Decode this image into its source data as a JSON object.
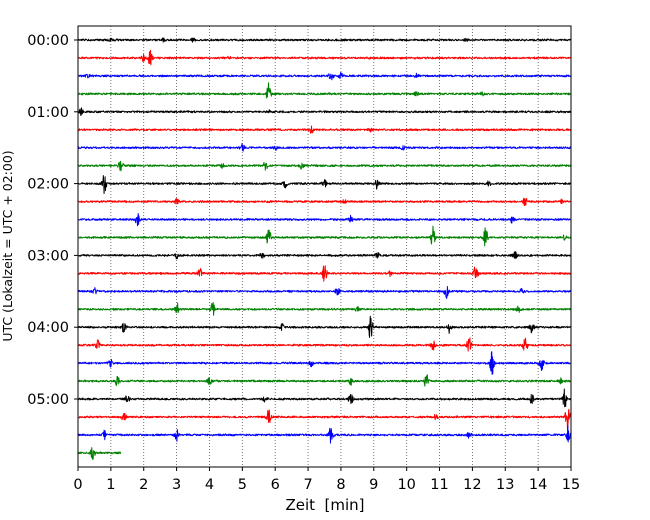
{
  "chart_data": {
    "type": "line",
    "title": "",
    "xlabel": "Zeit  [min]",
    "ylabel": "UTC (Lokalzeit = UTC + 02:00)",
    "xlim": [
      0,
      15
    ],
    "x_ticks": [
      "0",
      "1",
      "2",
      "3",
      "4",
      "5",
      "6",
      "7",
      "8",
      "9",
      "10",
      "11",
      "12",
      "13",
      "14",
      "15"
    ],
    "y_tick_labels": [
      "00:00",
      "01:00",
      "02:00",
      "03:00",
      "04:00",
      "05:00"
    ],
    "grid": "vertical dotted at each minute",
    "series_colors": [
      "#000000",
      "#ff0000",
      "#0000ff",
      "#008000"
    ],
    "traces": [
      {
        "start_utc": "00:00",
        "color": "#000000",
        "events": [
          {
            "t": 1.0,
            "amp": 0.15
          },
          {
            "t": 2.6,
            "amp": 0.12
          },
          {
            "t": 3.5,
            "amp": 0.15
          },
          {
            "t": 11.8,
            "amp": 0.12
          }
        ]
      },
      {
        "start_utc": "00:15",
        "color": "#ff0000",
        "events": [
          {
            "t": 2.2,
            "amp": 0.95
          },
          {
            "t": 2.0,
            "amp": 0.3
          },
          {
            "t": 4.6,
            "amp": 0.15
          }
        ]
      },
      {
        "start_utc": "00:30",
        "color": "#0000ff",
        "events": [
          {
            "t": 0.3,
            "amp": 0.15
          },
          {
            "t": 7.7,
            "amp": 0.4
          },
          {
            "t": 8.0,
            "amp": 0.4
          },
          {
            "t": 10.3,
            "amp": 0.15
          }
        ]
      },
      {
        "start_utc": "00:45",
        "color": "#008000",
        "events": [
          {
            "t": 5.8,
            "amp": 0.95
          },
          {
            "t": 10.3,
            "amp": 0.2
          },
          {
            "t": 12.3,
            "amp": 0.15
          }
        ]
      },
      {
        "start_utc": "01:00",
        "color": "#000000",
        "events": [
          {
            "t": 0.1,
            "amp": 0.3
          },
          {
            "t": 5.8,
            "amp": 0.12
          }
        ]
      },
      {
        "start_utc": "01:15",
        "color": "#ff0000",
        "events": [
          {
            "t": 7.1,
            "amp": 0.3
          },
          {
            "t": 8.9,
            "amp": 0.12
          }
        ]
      },
      {
        "start_utc": "01:30",
        "color": "#0000ff",
        "events": [
          {
            "t": 5.0,
            "amp": 0.3
          },
          {
            "t": 6.0,
            "amp": 0.2
          },
          {
            "t": 9.9,
            "amp": 0.2
          }
        ]
      },
      {
        "start_utc": "01:45",
        "color": "#008000",
        "events": [
          {
            "t": 1.3,
            "amp": 0.55
          },
          {
            "t": 5.7,
            "amp": 0.4
          },
          {
            "t": 6.8,
            "amp": 0.25
          },
          {
            "t": 4.4,
            "amp": 0.2
          }
        ]
      },
      {
        "start_utc": "02:00",
        "color": "#000000",
        "events": [
          {
            "t": 0.8,
            "amp": 0.95
          },
          {
            "t": 7.5,
            "amp": 0.4
          },
          {
            "t": 9.1,
            "amp": 0.5
          },
          {
            "t": 12.5,
            "amp": 0.25
          },
          {
            "t": 6.3,
            "amp": 0.3
          }
        ]
      },
      {
        "start_utc": "02:15",
        "color": "#ff0000",
        "events": [
          {
            "t": 3.0,
            "amp": 0.3
          },
          {
            "t": 8.1,
            "amp": 0.2
          },
          {
            "t": 13.6,
            "amp": 0.35
          },
          {
            "t": 14.7,
            "amp": 0.2
          }
        ]
      },
      {
        "start_utc": "02:30",
        "color": "#0000ff",
        "events": [
          {
            "t": 1.8,
            "amp": 0.75
          },
          {
            "t": 8.3,
            "amp": 0.3
          },
          {
            "t": 13.2,
            "amp": 0.25
          }
        ]
      },
      {
        "start_utc": "02:45",
        "color": "#008000",
        "events": [
          {
            "t": 5.8,
            "amp": 0.95
          },
          {
            "t": 10.8,
            "amp": 1.0
          },
          {
            "t": 12.4,
            "amp": 0.85
          },
          {
            "t": 14.8,
            "amp": 0.2
          }
        ]
      },
      {
        "start_utc": "03:00",
        "color": "#000000",
        "events": [
          {
            "t": 3.0,
            "amp": 0.3
          },
          {
            "t": 5.6,
            "amp": 0.25
          },
          {
            "t": 9.1,
            "amp": 0.3
          },
          {
            "t": 13.3,
            "amp": 0.3
          }
        ]
      },
      {
        "start_utc": "03:15",
        "color": "#ff0000",
        "events": [
          {
            "t": 3.7,
            "amp": 0.45
          },
          {
            "t": 7.5,
            "amp": 0.85
          },
          {
            "t": 12.1,
            "amp": 0.95
          },
          {
            "t": 9.5,
            "amp": 0.2
          }
        ]
      },
      {
        "start_utc": "03:30",
        "color": "#0000ff",
        "events": [
          {
            "t": 0.5,
            "amp": 0.4
          },
          {
            "t": 7.9,
            "amp": 0.3
          },
          {
            "t": 11.2,
            "amp": 0.65
          },
          {
            "t": 13.5,
            "amp": 0.2
          }
        ]
      },
      {
        "start_utc": "03:45",
        "color": "#008000",
        "events": [
          {
            "t": 3.0,
            "amp": 0.7
          },
          {
            "t": 4.1,
            "amp": 0.6
          },
          {
            "t": 8.5,
            "amp": 0.2
          },
          {
            "t": 13.4,
            "amp": 0.25
          }
        ]
      },
      {
        "start_utc": "04:00",
        "color": "#000000",
        "events": [
          {
            "t": 1.4,
            "amp": 0.5
          },
          {
            "t": 8.9,
            "amp": 1.3
          },
          {
            "t": 11.3,
            "amp": 0.7
          },
          {
            "t": 13.8,
            "amp": 0.5
          },
          {
            "t": 6.2,
            "amp": 0.3
          }
        ]
      },
      {
        "start_utc": "04:15",
        "color": "#ff0000",
        "events": [
          {
            "t": 0.6,
            "amp": 0.4
          },
          {
            "t": 10.8,
            "amp": 0.5
          },
          {
            "t": 11.9,
            "amp": 0.85
          },
          {
            "t": 13.6,
            "amp": 1.0
          }
        ]
      },
      {
        "start_utc": "04:30",
        "color": "#0000ff",
        "events": [
          {
            "t": 1.0,
            "amp": 0.3
          },
          {
            "t": 7.1,
            "amp": 0.3
          },
          {
            "t": 12.6,
            "amp": 1.1
          },
          {
            "t": 14.1,
            "amp": 0.7
          }
        ]
      },
      {
        "start_utc": "04:45",
        "color": "#008000",
        "events": [
          {
            "t": 1.2,
            "amp": 0.5
          },
          {
            "t": 4.0,
            "amp": 0.4
          },
          {
            "t": 8.3,
            "amp": 0.3
          },
          {
            "t": 10.6,
            "amp": 0.7
          },
          {
            "t": 14.7,
            "amp": 0.25
          }
        ]
      },
      {
        "start_utc": "05:00",
        "color": "#000000",
        "events": [
          {
            "t": 1.5,
            "amp": 0.4
          },
          {
            "t": 5.7,
            "amp": 0.35
          },
          {
            "t": 8.3,
            "amp": 0.5
          },
          {
            "t": 13.8,
            "amp": 0.5
          },
          {
            "t": 14.8,
            "amp": 0.9
          }
        ]
      },
      {
        "start_utc": "05:15",
        "color": "#ff0000",
        "events": [
          {
            "t": 1.4,
            "amp": 0.5
          },
          {
            "t": 5.8,
            "amp": 0.75
          },
          {
            "t": 10.9,
            "amp": 0.3
          },
          {
            "t": 14.9,
            "amp": 1.5
          }
        ]
      },
      {
        "start_utc": "05:30",
        "color": "#0000ff",
        "events": [
          {
            "t": 0.8,
            "amp": 0.4
          },
          {
            "t": 3.0,
            "amp": 0.55
          },
          {
            "t": 7.7,
            "amp": 1.0
          },
          {
            "t": 11.9,
            "amp": 0.3
          },
          {
            "t": 14.9,
            "amp": 0.8
          }
        ]
      },
      {
        "start_utc": "05:45",
        "color": "#008000",
        "end_min": 1.3,
        "events": [
          {
            "t": 0.45,
            "amp": 0.6
          }
        ]
      }
    ]
  }
}
